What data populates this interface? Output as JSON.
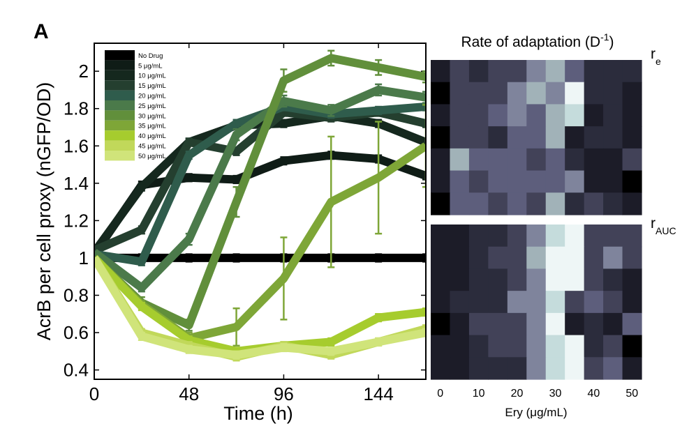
{
  "panel_label": "A",
  "chart_data": [
    {
      "type": "line",
      "xlabel": "Time (h)",
      "ylabel": "AcrB per cell proxy (nGFP/OD)",
      "xlim": [
        0,
        168
      ],
      "ylim": [
        0.35,
        2.15
      ],
      "xticks": [
        0,
        48,
        96,
        144
      ],
      "yticks": [
        0.4,
        0.6,
        0.8,
        1,
        1.2,
        1.4,
        1.6,
        1.8,
        2
      ],
      "ytick_labels": [
        "0.4",
        "0.6",
        "0.8",
        "1",
        "1.2",
        "1.4",
        "1.6",
        "1.8",
        "2"
      ],
      "x": [
        0,
        24,
        48,
        72,
        96,
        120,
        144,
        168
      ],
      "legend_position": "top-left",
      "series": [
        {
          "name": "No Drug",
          "color": "#000000",
          "values": [
            1.0,
            1.0,
            1.0,
            1.0,
            1.0,
            1.0,
            1.0,
            1.0
          ],
          "errors": [
            0,
            0.02,
            0.02,
            0.02,
            0.02,
            0.02,
            0.02,
            0.02
          ]
        },
        {
          "name": "5 μg/mL",
          "color": "#0f1c16",
          "values": [
            1.02,
            1.39,
            1.43,
            1.42,
            1.52,
            1.55,
            1.53,
            1.44
          ],
          "errors": [
            0,
            0.02,
            0.02,
            0.02,
            0.02,
            0.02,
            0.02,
            0.02
          ]
        },
        {
          "name": "10 μg/mL",
          "color": "#15281e",
          "values": [
            1.03,
            1.38,
            1.62,
            1.71,
            1.72,
            1.76,
            1.72,
            1.62
          ],
          "errors": [
            0,
            0.02,
            0.02,
            0.02,
            0.02,
            0.02,
            0.02,
            0.02
          ]
        },
        {
          "name": "15 μg/mL",
          "color": "#243f2f",
          "values": [
            1.04,
            1.15,
            1.62,
            1.57,
            1.78,
            1.75,
            1.78,
            1.72
          ],
          "errors": [
            0,
            0.02,
            0.02,
            0.02,
            0.02,
            0.02,
            0.02,
            0.02
          ]
        },
        {
          "name": "20 μg/mL",
          "color": "#2f5c4c",
          "values": [
            1.02,
            0.98,
            1.55,
            1.72,
            1.81,
            1.77,
            1.79,
            1.81
          ],
          "errors": [
            0,
            0.02,
            0.02,
            0.02,
            0.02,
            0.02,
            0.02,
            0.02
          ]
        },
        {
          "name": "25 μg/mL",
          "color": "#4b7a4a",
          "values": [
            1.03,
            0.84,
            1.1,
            1.66,
            1.84,
            1.79,
            1.9,
            1.86
          ],
          "errors": [
            0,
            0.02,
            0.03,
            0.03,
            0.03,
            0.03,
            0.03,
            0.03
          ]
        },
        {
          "name": "30 μg/mL",
          "color": "#618f3b",
          "values": [
            1.0,
            0.76,
            0.64,
            1.3,
            1.95,
            2.07,
            2.02,
            1.97
          ],
          "errors": [
            0,
            0.03,
            0.03,
            0.08,
            0.06,
            0.04,
            0.04,
            0.03
          ]
        },
        {
          "name": "35 μg/mL",
          "color": "#7ea637",
          "values": [
            1.0,
            0.75,
            0.57,
            0.63,
            0.89,
            1.3,
            1.43,
            1.6
          ],
          "errors": [
            0,
            0.02,
            0.03,
            0.1,
            0.22,
            0.35,
            0.3,
            0.22
          ]
        },
        {
          "name": "40 μg/mL",
          "color": "#a6cc2e",
          "values": [
            1.0,
            0.74,
            0.56,
            0.5,
            0.53,
            0.55,
            0.68,
            0.71
          ],
          "errors": [
            0,
            0.02,
            0.02,
            0.02,
            0.02,
            0.02,
            0.02,
            0.02
          ]
        },
        {
          "name": "45 μg/mL",
          "color": "#c1d85a",
          "values": [
            1.0,
            0.6,
            0.53,
            0.47,
            0.53,
            0.48,
            0.55,
            0.62
          ],
          "errors": [
            0,
            0.02,
            0.02,
            0.02,
            0.02,
            0.02,
            0.02,
            0.02
          ]
        },
        {
          "name": "50 μg/mL",
          "color": "#d0e47a",
          "values": [
            1.0,
            0.58,
            0.51,
            0.48,
            0.52,
            0.5,
            0.55,
            0.6
          ],
          "errors": [
            0,
            0.02,
            0.02,
            0.02,
            0.02,
            0.02,
            0.02,
            0.02
          ]
        }
      ]
    },
    {
      "type": "heatmap",
      "title": "Rate of adaptation (D",
      "title_superscript": "-1",
      "title_suffix": ")",
      "xlabel": "Ery (μg/mL)",
      "xticks": [
        "0",
        "10",
        "20",
        "30",
        "40",
        "50"
      ],
      "row_labels": [
        {
          "main": "r",
          "sub": "e"
        },
        {
          "main": "r",
          "sub": "AUC"
        }
      ],
      "columns": [
        "0",
        "5",
        "10",
        "15",
        "20",
        "25",
        "30",
        "35",
        "40",
        "45",
        "50"
      ],
      "palette": [
        "#000000",
        "#1c1c28",
        "#2b2c3c",
        "#424258",
        "#5d5e7c",
        "#7f849c",
        "#a1b2b8",
        "#c5dcdc",
        "#eef6f6"
      ],
      "matrix_re": [
        [
          1,
          3,
          2,
          3,
          3,
          5,
          6,
          4,
          2,
          2,
          2
        ],
        [
          0,
          3,
          3,
          3,
          5,
          6,
          5,
          8,
          2,
          2,
          1
        ],
        [
          1,
          3,
          3,
          4,
          5,
          4,
          6,
          7,
          1,
          2,
          1
        ],
        [
          0,
          3,
          3,
          2,
          4,
          4,
          6,
          1,
          2,
          2,
          1
        ],
        [
          1,
          6,
          4,
          4,
          4,
          3,
          4,
          2,
          1,
          1,
          3
        ],
        [
          1,
          4,
          3,
          4,
          4,
          4,
          4,
          5,
          1,
          1,
          0
        ],
        [
          0,
          4,
          4,
          3,
          4,
          3,
          6,
          2,
          3,
          2,
          1
        ]
      ],
      "matrix_rauc": [
        [
          1,
          1,
          2,
          2,
          3,
          5,
          7,
          8,
          3,
          3,
          3
        ],
        [
          1,
          1,
          2,
          3,
          3,
          6,
          8,
          8,
          3,
          5,
          3
        ],
        [
          1,
          1,
          2,
          2,
          3,
          5,
          8,
          8,
          3,
          2,
          1
        ],
        [
          1,
          2,
          2,
          2,
          5,
          5,
          7,
          3,
          4,
          3,
          1
        ],
        [
          0,
          1,
          3,
          3,
          3,
          5,
          8,
          1,
          2,
          1,
          4
        ],
        [
          1,
          1,
          2,
          3,
          3,
          5,
          7,
          8,
          2,
          3,
          0
        ],
        [
          1,
          1,
          2,
          2,
          2,
          5,
          7,
          8,
          3,
          4,
          1
        ]
      ]
    }
  ]
}
